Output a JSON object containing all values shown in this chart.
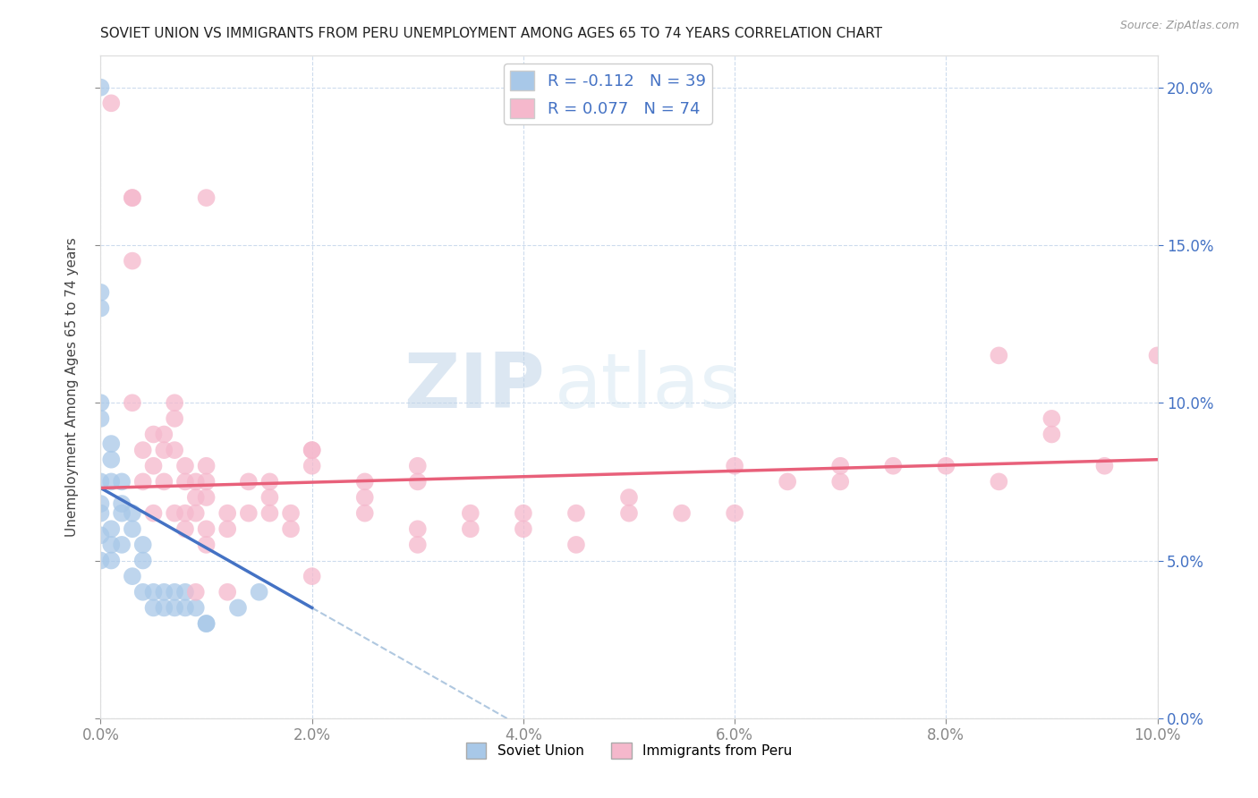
{
  "title": "SOVIET UNION VS IMMIGRANTS FROM PERU UNEMPLOYMENT AMONG AGES 65 TO 74 YEARS CORRELATION CHART",
  "source": "Source: ZipAtlas.com",
  "ylabel": "Unemployment Among Ages 65 to 74 years",
  "xmin": 0.0,
  "xmax": 0.1,
  "ymin": 0.0,
  "ymax": 0.21,
  "soviet_R": -0.112,
  "soviet_N": 39,
  "peru_R": 0.077,
  "peru_N": 74,
  "soviet_color": "#a8c8e8",
  "peru_color": "#f5b8cc",
  "soviet_line_color": "#4472c4",
  "peru_line_color": "#e8607a",
  "trend_extension_color": "#b0c8e0",
  "watermark_zip": "ZIP",
  "watermark_atlas": "atlas",
  "soviet_x": [
    0.0,
    0.0,
    0.0,
    0.0,
    0.0,
    0.0,
    0.0,
    0.0,
    0.0,
    0.0,
    0.001,
    0.001,
    0.001,
    0.001,
    0.001,
    0.001,
    0.002,
    0.002,
    0.002,
    0.002,
    0.003,
    0.003,
    0.003,
    0.004,
    0.004,
    0.004,
    0.005,
    0.005,
    0.006,
    0.006,
    0.007,
    0.007,
    0.008,
    0.008,
    0.009,
    0.01,
    0.01,
    0.013,
    0.015
  ],
  "soviet_y": [
    0.2,
    0.13,
    0.135,
    0.1,
    0.095,
    0.075,
    0.068,
    0.065,
    0.058,
    0.05,
    0.087,
    0.082,
    0.075,
    0.06,
    0.055,
    0.05,
    0.075,
    0.068,
    0.065,
    0.055,
    0.065,
    0.06,
    0.045,
    0.055,
    0.05,
    0.04,
    0.04,
    0.035,
    0.04,
    0.035,
    0.04,
    0.035,
    0.04,
    0.035,
    0.035,
    0.03,
    0.03,
    0.035,
    0.04
  ],
  "peru_x": [
    0.001,
    0.003,
    0.003,
    0.003,
    0.004,
    0.004,
    0.005,
    0.005,
    0.005,
    0.006,
    0.006,
    0.006,
    0.007,
    0.007,
    0.007,
    0.007,
    0.008,
    0.008,
    0.008,
    0.008,
    0.009,
    0.009,
    0.009,
    0.009,
    0.01,
    0.01,
    0.01,
    0.01,
    0.01,
    0.012,
    0.012,
    0.012,
    0.014,
    0.014,
    0.016,
    0.016,
    0.016,
    0.018,
    0.018,
    0.02,
    0.02,
    0.02,
    0.025,
    0.025,
    0.025,
    0.03,
    0.03,
    0.03,
    0.03,
    0.035,
    0.035,
    0.04,
    0.04,
    0.045,
    0.045,
    0.05,
    0.05,
    0.055,
    0.06,
    0.06,
    0.065,
    0.07,
    0.07,
    0.075,
    0.08,
    0.085,
    0.085,
    0.09,
    0.09,
    0.095,
    0.1,
    0.003,
    0.01,
    0.02
  ],
  "peru_y": [
    0.195,
    0.165,
    0.145,
    0.1,
    0.085,
    0.075,
    0.09,
    0.08,
    0.065,
    0.09,
    0.085,
    0.075,
    0.1,
    0.095,
    0.085,
    0.065,
    0.08,
    0.075,
    0.065,
    0.06,
    0.075,
    0.07,
    0.065,
    0.04,
    0.08,
    0.075,
    0.07,
    0.06,
    0.055,
    0.065,
    0.06,
    0.04,
    0.075,
    0.065,
    0.075,
    0.07,
    0.065,
    0.065,
    0.06,
    0.085,
    0.08,
    0.045,
    0.075,
    0.07,
    0.065,
    0.06,
    0.08,
    0.075,
    0.055,
    0.065,
    0.06,
    0.065,
    0.06,
    0.065,
    0.055,
    0.07,
    0.065,
    0.065,
    0.08,
    0.065,
    0.075,
    0.075,
    0.08,
    0.08,
    0.08,
    0.075,
    0.115,
    0.095,
    0.09,
    0.08,
    0.115,
    0.165,
    0.165,
    0.085
  ]
}
